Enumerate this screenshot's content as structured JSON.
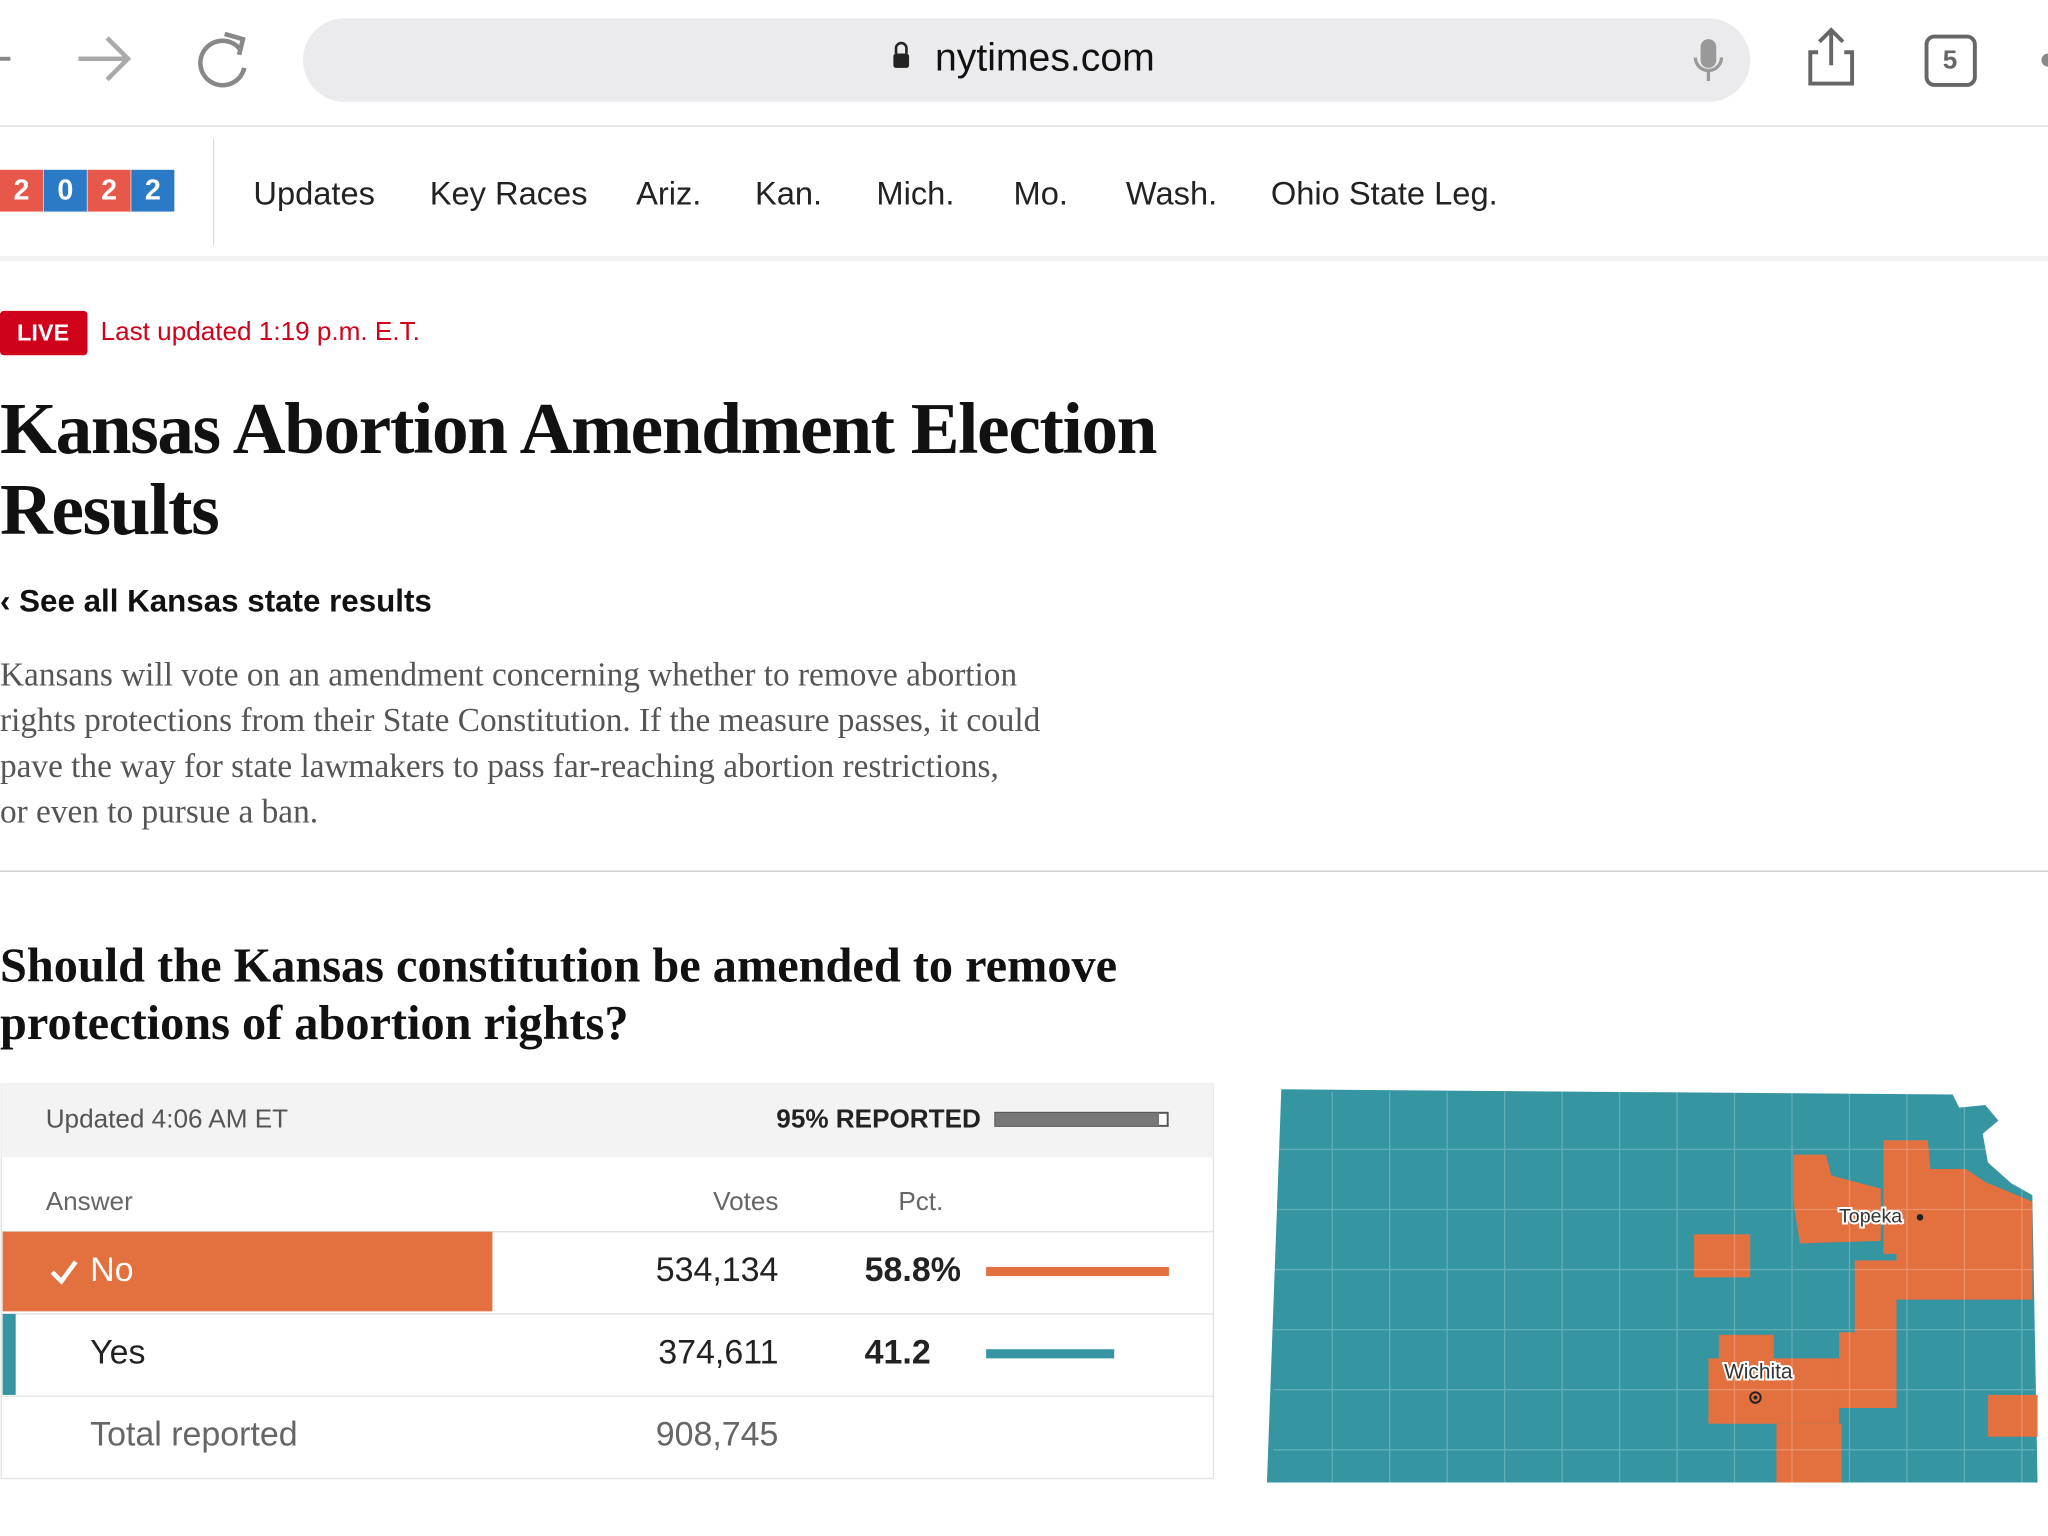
{
  "browser": {
    "url": "nytimes.com",
    "tab_count": "5"
  },
  "nav": {
    "logo": [
      "2",
      "0",
      "2",
      "2"
    ],
    "items": [
      "Updates",
      "Key Races",
      "Ariz.",
      "Kan.",
      "Mich.",
      "Mo.",
      "Wash.",
      "Ohio State Leg."
    ]
  },
  "live": {
    "badge": "LIVE",
    "updated": "Last updated 1:19 p.m. E.T."
  },
  "headline": {
    "title_lines": [
      "Kansas Abortion Amendment Election",
      "Results"
    ],
    "back_link": "‹ See all Kansas state results",
    "description_lines": [
      "Kansans will vote on an amendment concerning whether to remove abortion",
      "rights protections from their State Constitution. If the measure passes, it could",
      "pave the way for state lawmakers to pass far-reaching abortion restrictions,",
      "or even to pursue a ban."
    ]
  },
  "question_lines": [
    "Should the Kansas constitution be amended to remove",
    "protections of abortion rights?"
  ],
  "results": {
    "updated": "Updated 4:06 AM ET",
    "reported_label": "95% REPORTED",
    "reported_pct": 95,
    "columns": [
      "Answer",
      "Votes",
      "Pct."
    ],
    "rows": [
      {
        "answer": "No",
        "votes": "534,134",
        "pct": 58.8,
        "pct_label": "58.8%",
        "color": "#e3703f",
        "winner": true
      },
      {
        "answer": "Yes",
        "votes": "374,611",
        "pct": 41.2,
        "pct_label": "41.2",
        "color": "#3596a2",
        "winner": false
      },
      {
        "answer": "Total reported",
        "votes": "908,745"
      }
    ]
  },
  "map": {
    "labels": [
      "Topeka",
      "Wichita"
    ]
  }
}
